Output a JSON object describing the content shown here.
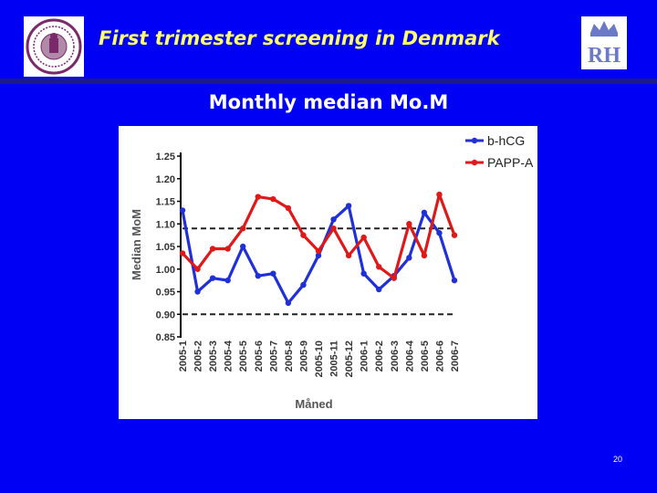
{
  "slide": {
    "title": "First trimester screening in Denmark",
    "subtitle": "Monthly median Mo.M",
    "page_number": "20",
    "logo_right_text": "RH"
  },
  "colors": {
    "background": "#0000f5",
    "title": "#ffff66",
    "series_bhcg": "#2030d8",
    "series_pappa": "#e01818"
  },
  "icons": {
    "left_logo": "university-seal-icon",
    "right_logo": "crown-rh-logo-icon"
  },
  "chart_data": {
    "type": "line",
    "title": "",
    "xlabel": "Måned",
    "ylabel": "Median MoM",
    "ylim": [
      0.85,
      1.25
    ],
    "yticks": [
      "0.85",
      "0.90",
      "0.95",
      "1.00",
      "1.05",
      "1.10",
      "1.15",
      "1.20",
      "1.25"
    ],
    "categories": [
      "2005-1",
      "2005-2",
      "2005-3",
      "2005-4",
      "2005-5",
      "2005-6",
      "2005-7",
      "2005-8",
      "2005-9",
      "2005-10",
      "2005-11",
      "2005-12",
      "2006-1",
      "2006-2",
      "2006-3",
      "2006-4",
      "2006-5",
      "2006-6",
      "2006-7"
    ],
    "series": [
      {
        "name": "b-hCG",
        "color": "#2030d8",
        "values": [
          1.13,
          0.95,
          0.98,
          0.975,
          1.05,
          0.985,
          0.99,
          0.925,
          0.965,
          1.03,
          1.11,
          1.14,
          0.99,
          0.955,
          0.985,
          1.025,
          1.125,
          1.08,
          0.975
        ]
      },
      {
        "name": "PAPP-A",
        "color": "#e01818",
        "values": [
          1.035,
          1.0,
          1.045,
          1.045,
          1.09,
          1.16,
          1.155,
          1.135,
          1.075,
          1.04,
          1.09,
          1.03,
          1.07,
          1.005,
          0.98,
          1.1,
          1.03,
          1.165,
          1.075
        ]
      }
    ],
    "reference_lines": [
      1.09,
      0.9
    ],
    "legend_position": "top-right",
    "grid": false
  }
}
